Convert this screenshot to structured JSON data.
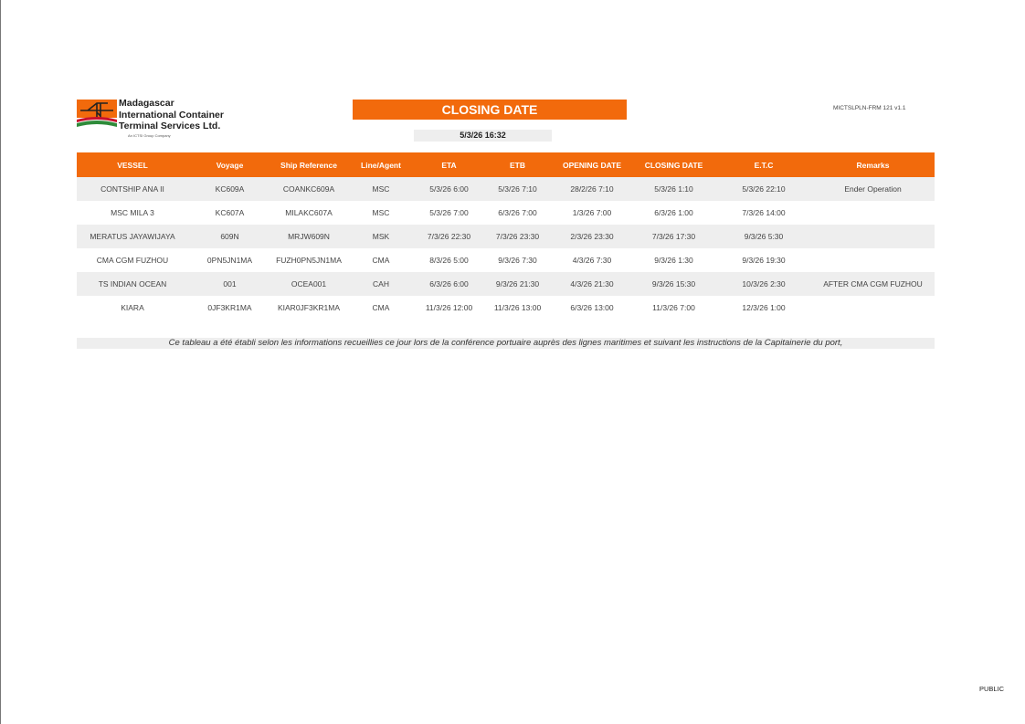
{
  "logo": {
    "line1": "Madagascar",
    "line2": "International Container",
    "line3": "Terminal Services Ltd.",
    "tagline": "An ICTSI Group Company"
  },
  "title": "CLOSING DATE",
  "date": "5/3/26 16:32",
  "form_ref": "MICTSLPLN-FRM 121 v1.1",
  "colors": {
    "accent": "#f26a0c",
    "row_alt": "#eeeeee"
  },
  "table": {
    "headers": [
      "VESSEL",
      "Voyage",
      "Ship Reference",
      "Line/Agent",
      "ETA",
      "ETB",
      "OPENING DATE",
      "CLOSING DATE",
      "E.T.C",
      "Remarks"
    ],
    "rows": [
      [
        "CONTSHIP ANA II",
        "KC609A",
        "COANKC609A",
        "MSC",
        "5/3/26 6:00",
        "5/3/26 7:10",
        "28/2/26 7:10",
        "5/3/26 1:10",
        "5/3/26 22:10",
        "Ender Operation"
      ],
      [
        "MSC MILA 3",
        "KC607A",
        "MILAKC607A",
        "MSC",
        "5/3/26 7:00",
        "6/3/26 7:00",
        "1/3/26 7:00",
        "6/3/26 1:00",
        "7/3/26 14:00",
        ""
      ],
      [
        "MERATUS JAYAWIJAYA",
        "609N",
        "MRJW609N",
        "MSK",
        "7/3/26 22:30",
        "7/3/26 23:30",
        "2/3/26 23:30",
        "7/3/26 17:30",
        "9/3/26 5:30",
        ""
      ],
      [
        "CMA CGM FUZHOU",
        "0PN5JN1MA",
        "FUZH0PN5JN1MA",
        "CMA",
        "8/3/26 5:00",
        "9/3/26 7:30",
        "4/3/26 7:30",
        "9/3/26 1:30",
        "9/3/26 19:30",
        ""
      ],
      [
        "TS INDIAN OCEAN",
        "001",
        "OCEA001",
        "CAH",
        "6/3/26 6:00",
        "9/3/26 21:30",
        "4/3/26 21:30",
        "9/3/26 15:30",
        "10/3/26 2:30",
        "AFTER CMA CGM FUZHOU"
      ],
      [
        "KIARA",
        "0JF3KR1MA",
        "KIAR0JF3KR1MA",
        "CMA",
        "11/3/26 12:00",
        "11/3/26 13:00",
        "6/3/26 13:00",
        "11/3/26 7:00",
        "12/3/26 1:00",
        ""
      ]
    ]
  },
  "note": "Ce tableau a été établi selon les informations recueillies ce jour lors de la conférence portuaire auprès des lignes maritimes et suivant les instructions de la Capitainerie du port,",
  "classification": "PUBLIC"
}
